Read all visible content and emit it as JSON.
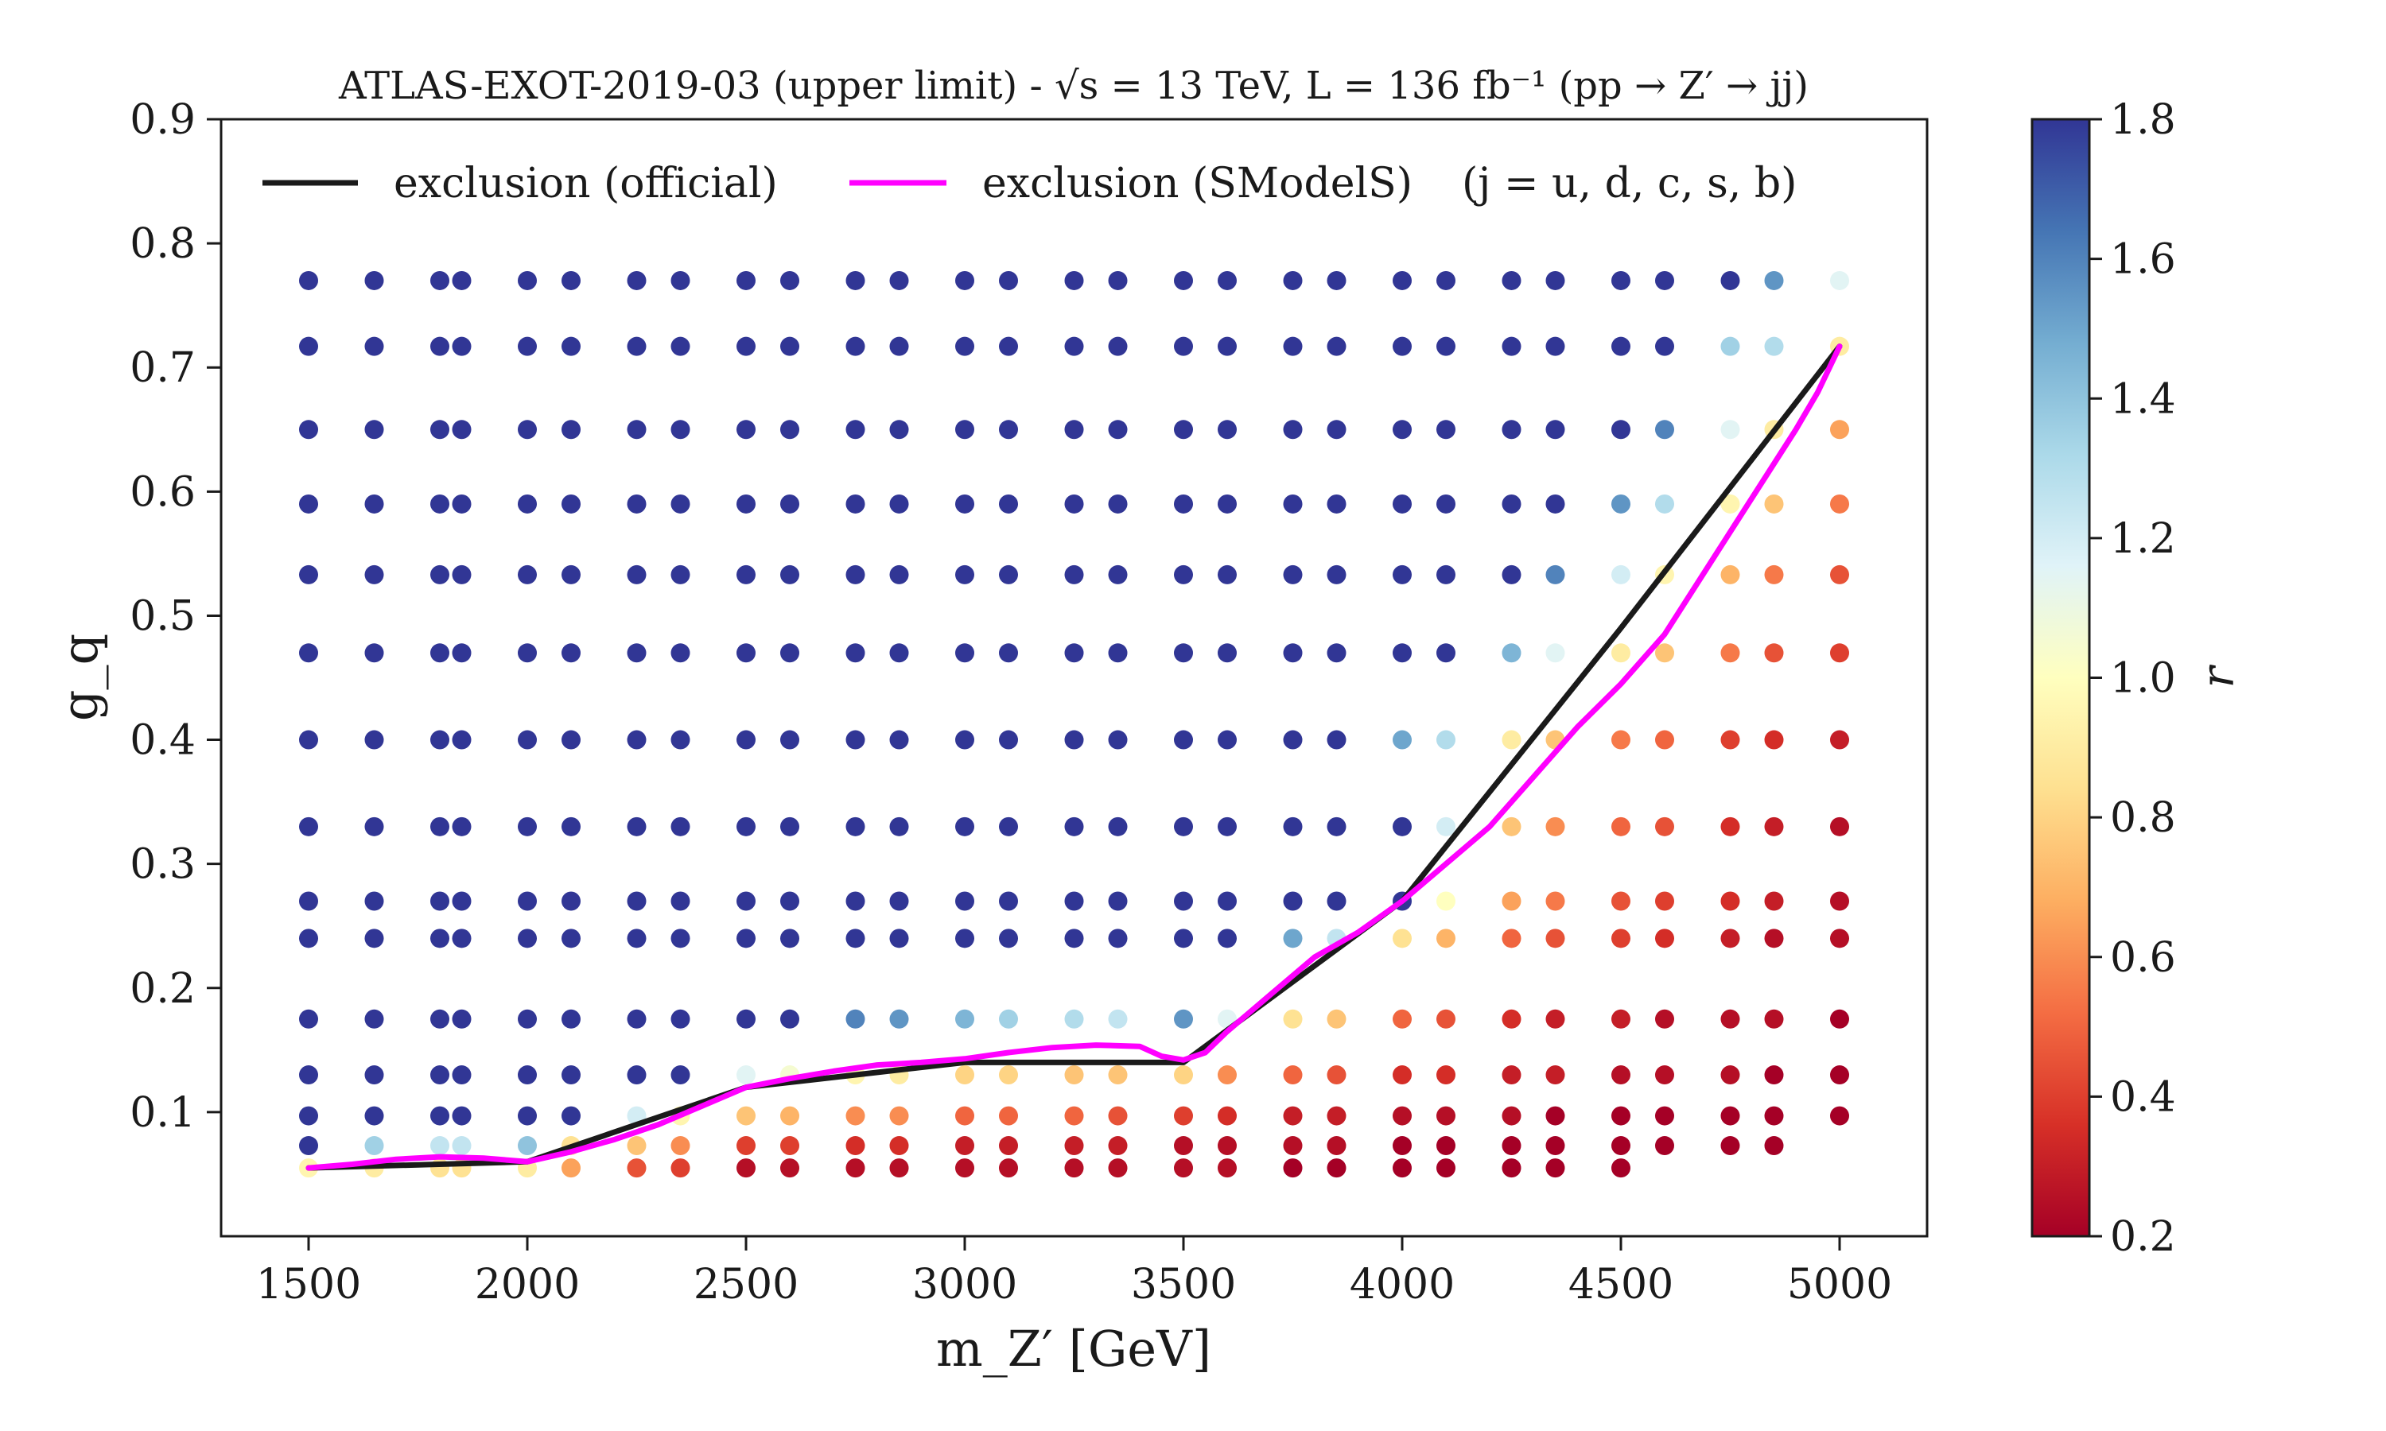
{
  "chart_data": {
    "type": "scatter",
    "title": "ATLAS-EXOT-2019-03 (upper limit) - √s = 13 TeV, L = 136 fb⁻¹ (pp → Z′ → jj)",
    "xlabel": "m_Z′ [GeV]",
    "ylabel": "g_q",
    "xlim": [
      1300,
      5200
    ],
    "ylim": [
      0.0,
      0.9
    ],
    "xticks": [
      "1500",
      "2000",
      "2500",
      "3000",
      "3500",
      "4000",
      "4500",
      "5000"
    ],
    "yticks": [
      "0.1",
      "0.2",
      "0.3",
      "0.4",
      "0.5",
      "0.6",
      "0.7",
      "0.8",
      "0.9"
    ],
    "grid": false,
    "legend_placement": "top",
    "legend": [
      {
        "label": "exclusion (official)",
        "color": "#1a1a1a"
      },
      {
        "label": "exclusion (SModelS)",
        "color": "#ff00ff"
      }
    ],
    "annotation": "(j = u, d, c, s, b)",
    "colorbar": {
      "label": "r",
      "range": [
        0.2,
        1.8
      ],
      "ticks": [
        "0.2",
        "0.4",
        "0.6",
        "0.8",
        "1.0",
        "1.2",
        "1.4",
        "1.6",
        "1.8"
      ],
      "colormap": "RdYlBu",
      "colors": [
        "#a50026",
        "#d73027",
        "#f46d43",
        "#fdae61",
        "#fee090",
        "#ffffbf",
        "#e0f3f8",
        "#abd9e9",
        "#74add1",
        "#4575b4",
        "#313695"
      ]
    },
    "points_x": [
      1500,
      1650,
      1800,
      1850,
      2000,
      2100,
      2250,
      2350,
      2500,
      2600,
      2750,
      2850,
      3000,
      3100,
      3250,
      3350,
      3500,
      3600,
      3750,
      3850,
      4000,
      4100,
      4250,
      4350,
      4500,
      4600,
      4750,
      4850,
      5000
    ],
    "points_y": [
      0.055,
      0.073,
      0.097,
      0.13,
      0.175,
      0.24,
      0.27,
      0.33,
      0.4,
      0.47,
      0.533,
      0.59,
      0.65,
      0.717,
      0.77
    ],
    "r_grid": [
      [
        0.95,
        0.9,
        0.85,
        0.85,
        0.9,
        0.65,
        0.45,
        0.4,
        0.25,
        0.25,
        0.25,
        0.25,
        0.25,
        0.25,
        0.25,
        0.25,
        0.25,
        0.25,
        0.2,
        0.2,
        0.2,
        0.2,
        0.2,
        0.2,
        0.2,
        null,
        null,
        null,
        null
      ],
      [
        1.8,
        1.35,
        1.25,
        1.25,
        1.4,
        0.85,
        0.75,
        0.6,
        0.4,
        0.4,
        0.35,
        0.35,
        0.3,
        0.3,
        0.3,
        0.3,
        0.25,
        0.25,
        0.25,
        0.25,
        0.2,
        0.2,
        0.2,
        0.2,
        0.2,
        0.2,
        0.2,
        0.2,
        null
      ],
      [
        1.8,
        1.8,
        1.8,
        1.8,
        1.8,
        1.8,
        1.2,
        0.95,
        0.75,
        0.7,
        0.6,
        0.6,
        0.5,
        0.5,
        0.5,
        0.45,
        0.4,
        0.35,
        0.3,
        0.3,
        0.25,
        0.25,
        0.25,
        0.2,
        0.2,
        0.2,
        0.2,
        0.2,
        0.2
      ],
      [
        1.8,
        1.8,
        1.8,
        1.8,
        1.8,
        1.8,
        1.8,
        1.8,
        1.15,
        1.05,
        0.95,
        0.9,
        0.8,
        0.8,
        0.75,
        0.75,
        0.8,
        0.6,
        0.5,
        0.45,
        0.35,
        0.35,
        0.3,
        0.3,
        0.25,
        0.25,
        0.25,
        0.2,
        0.2
      ],
      [
        1.8,
        1.8,
        1.8,
        1.8,
        1.8,
        1.8,
        1.8,
        1.8,
        1.8,
        1.8,
        1.6,
        1.55,
        1.45,
        1.35,
        1.3,
        1.25,
        1.55,
        1.15,
        0.85,
        0.75,
        0.5,
        0.45,
        0.35,
        0.3,
        0.3,
        0.25,
        0.25,
        0.25,
        0.2
      ],
      [
        1.8,
        1.8,
        1.8,
        1.8,
        1.8,
        1.8,
        1.8,
        1.8,
        1.8,
        1.8,
        1.8,
        1.8,
        1.8,
        1.8,
        1.8,
        1.8,
        1.8,
        1.8,
        1.5,
        1.25,
        0.85,
        0.7,
        0.5,
        0.45,
        0.4,
        0.35,
        0.3,
        0.25,
        0.25
      ],
      [
        1.8,
        1.8,
        1.8,
        1.8,
        1.8,
        1.8,
        1.8,
        1.8,
        1.8,
        1.8,
        1.8,
        1.8,
        1.8,
        1.8,
        1.8,
        1.8,
        1.8,
        1.8,
        1.8,
        1.8,
        1.8,
        1.0,
        0.65,
        0.55,
        0.45,
        0.4,
        0.35,
        0.3,
        0.25
      ],
      [
        1.8,
        1.8,
        1.8,
        1.8,
        1.8,
        1.8,
        1.8,
        1.8,
        1.8,
        1.8,
        1.8,
        1.8,
        1.8,
        1.8,
        1.8,
        1.8,
        1.8,
        1.8,
        1.8,
        1.8,
        1.8,
        1.2,
        0.75,
        0.6,
        0.5,
        0.45,
        0.35,
        0.3,
        0.25
      ],
      [
        1.8,
        1.8,
        1.8,
        1.8,
        1.8,
        1.8,
        1.8,
        1.8,
        1.8,
        1.8,
        1.8,
        1.8,
        1.8,
        1.8,
        1.8,
        1.8,
        1.8,
        1.8,
        1.8,
        1.8,
        1.5,
        1.3,
        0.9,
        0.75,
        0.55,
        0.5,
        0.4,
        0.35,
        0.3
      ],
      [
        1.8,
        1.8,
        1.8,
        1.8,
        1.8,
        1.8,
        1.8,
        1.8,
        1.8,
        1.8,
        1.8,
        1.8,
        1.8,
        1.8,
        1.8,
        1.8,
        1.8,
        1.8,
        1.8,
        1.8,
        1.8,
        1.8,
        1.45,
        1.15,
        0.9,
        0.75,
        0.55,
        0.45,
        0.4
      ],
      [
        1.8,
        1.8,
        1.8,
        1.8,
        1.8,
        1.8,
        1.8,
        1.8,
        1.8,
        1.8,
        1.8,
        1.8,
        1.8,
        1.8,
        1.8,
        1.8,
        1.8,
        1.8,
        1.8,
        1.8,
        1.8,
        1.8,
        1.8,
        1.6,
        1.2,
        0.95,
        0.7,
        0.55,
        0.45
      ],
      [
        1.8,
        1.8,
        1.8,
        1.8,
        1.8,
        1.8,
        1.8,
        1.8,
        1.8,
        1.8,
        1.8,
        1.8,
        1.8,
        1.8,
        1.8,
        1.8,
        1.8,
        1.8,
        1.8,
        1.8,
        1.8,
        1.8,
        1.8,
        1.8,
        1.55,
        1.3,
        0.95,
        0.75,
        0.55
      ],
      [
        1.8,
        1.8,
        1.8,
        1.8,
        1.8,
        1.8,
        1.8,
        1.8,
        1.8,
        1.8,
        1.8,
        1.8,
        1.8,
        1.8,
        1.8,
        1.8,
        1.8,
        1.8,
        1.8,
        1.8,
        1.8,
        1.8,
        1.8,
        1.8,
        1.8,
        1.6,
        1.15,
        0.9,
        0.65
      ],
      [
        1.8,
        1.8,
        1.8,
        1.8,
        1.8,
        1.8,
        1.8,
        1.8,
        1.8,
        1.8,
        1.8,
        1.8,
        1.8,
        1.8,
        1.8,
        1.8,
        1.8,
        1.8,
        1.8,
        1.8,
        1.8,
        1.8,
        1.8,
        1.8,
        1.8,
        1.8,
        1.35,
        1.3,
        0.9
      ],
      [
        1.8,
        1.8,
        1.8,
        1.8,
        1.8,
        1.8,
        1.8,
        1.8,
        1.8,
        1.8,
        1.8,
        1.8,
        1.8,
        1.8,
        1.8,
        1.8,
        1.8,
        1.8,
        1.8,
        1.8,
        1.8,
        1.8,
        1.8,
        1.8,
        1.8,
        1.8,
        1.8,
        1.55,
        1.15
      ]
    ],
    "series": [
      {
        "name": "exclusion (official)",
        "color": "#1a1a1a",
        "x": [
          1500,
          2000,
          2500,
          3000,
          3500,
          4000,
          4500,
          5000
        ],
        "y": [
          0.055,
          0.06,
          0.12,
          0.14,
          0.14,
          0.27,
          0.49,
          0.717
        ]
      },
      {
        "name": "exclusion (SModelS)",
        "color": "#ff00ff",
        "x": [
          1500,
          1600,
          1700,
          1800,
          1900,
          2000,
          2100,
          2200,
          2300,
          2400,
          2500,
          2600,
          2700,
          2800,
          2900,
          3000,
          3100,
          3200,
          3300,
          3400,
          3450,
          3500,
          3550,
          3600,
          3700,
          3800,
          3900,
          4000,
          4100,
          4200,
          4300,
          4400,
          4500,
          4600,
          4700,
          4800,
          4900,
          4950,
          5000
        ],
        "y": [
          0.055,
          0.058,
          0.062,
          0.064,
          0.063,
          0.06,
          0.068,
          0.078,
          0.09,
          0.105,
          0.12,
          0.127,
          0.133,
          0.138,
          0.14,
          0.143,
          0.148,
          0.152,
          0.154,
          0.153,
          0.145,
          0.142,
          0.148,
          0.165,
          0.195,
          0.225,
          0.245,
          0.27,
          0.3,
          0.33,
          0.37,
          0.41,
          0.445,
          0.485,
          0.54,
          0.595,
          0.65,
          0.68,
          0.717
        ]
      }
    ]
  }
}
